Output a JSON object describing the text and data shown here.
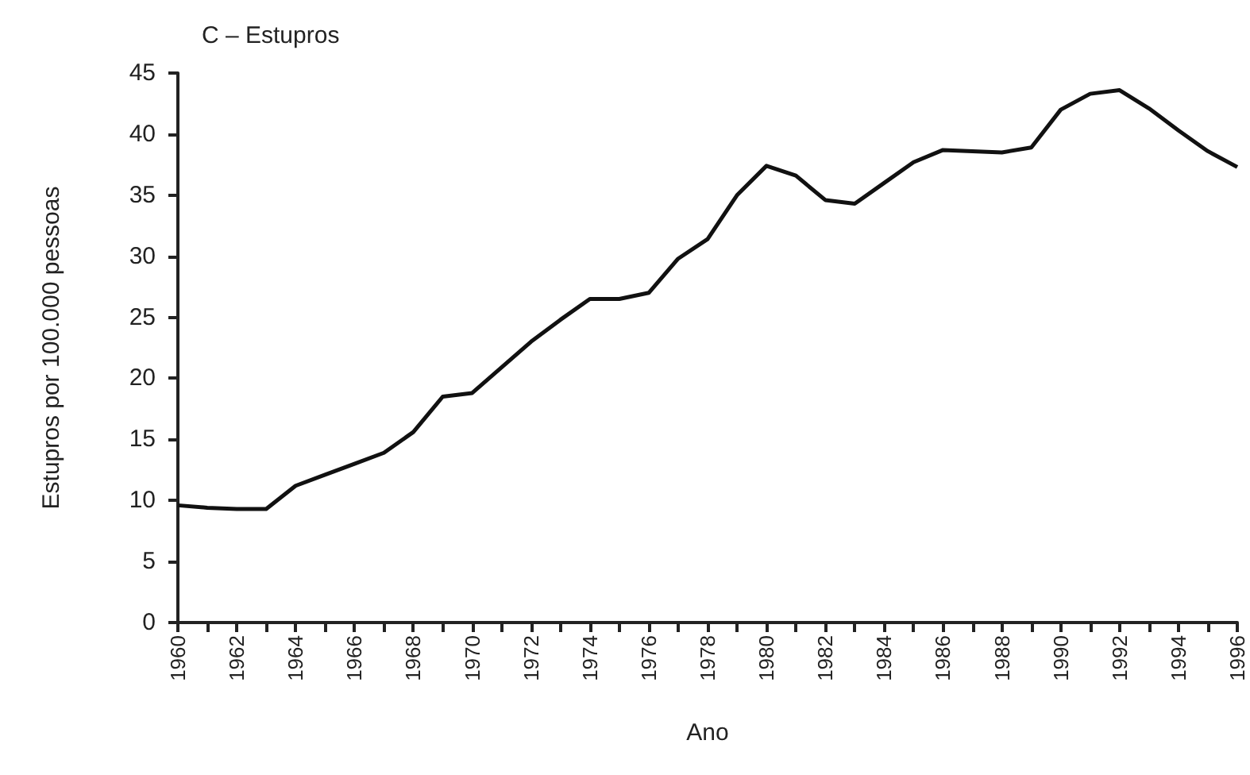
{
  "chart_data": {
    "type": "line",
    "title": "C – Estupros",
    "xlabel": "Ano",
    "ylabel": "Estupros por 100.000 pessoas",
    "x": [
      1960,
      1961,
      1962,
      1963,
      1964,
      1965,
      1966,
      1967,
      1968,
      1969,
      1970,
      1971,
      1972,
      1973,
      1974,
      1975,
      1976,
      1977,
      1978,
      1979,
      1980,
      1981,
      1982,
      1983,
      1984,
      1985,
      1986,
      1987,
      1988,
      1989,
      1990,
      1991,
      1992,
      1993,
      1994,
      1995,
      1996
    ],
    "series": [
      {
        "color": "#111111",
        "values": [
          9.6,
          9.4,
          9.3,
          9.3,
          11.2,
          12.1,
          13.0,
          13.9,
          15.6,
          18.5,
          18.8,
          20.9,
          23.0,
          24.8,
          26.5,
          26.5,
          27.0,
          29.8,
          31.4,
          35.0,
          37.4,
          36.6,
          34.6,
          34.3,
          36.0,
          37.7,
          38.7,
          38.6,
          38.5,
          38.9,
          42.0,
          43.3,
          43.6,
          42.1,
          40.3,
          38.6,
          37.3
        ]
      }
    ],
    "xlim": [
      1960,
      1996
    ],
    "xticks": [
      1960,
      {
        "value": 1961,
        "label": null
      },
      1962,
      {
        "value": 1963,
        "label": null
      },
      1964,
      {
        "value": 1965,
        "label": null
      },
      1966,
      {
        "value": 1967,
        "label": null
      },
      1968,
      {
        "value": 1969,
        "label": null
      },
      1970,
      {
        "value": 1971,
        "label": null
      },
      1972,
      {
        "value": 1973,
        "label": null
      },
      1974,
      {
        "value": 1975,
        "label": null
      },
      1976,
      {
        "value": 1977,
        "label": null
      },
      1978,
      {
        "value": 1979,
        "label": null
      },
      1980,
      {
        "value": 1981,
        "label": null
      },
      1982,
      {
        "value": 1983,
        "label": null
      },
      1984,
      {
        "value": 1985,
        "label": null
      },
      1986,
      {
        "value": 1987,
        "label": null
      },
      1988,
      {
        "value": 1989,
        "label": null
      },
      1990,
      {
        "value": 1991,
        "label": null
      },
      1992,
      {
        "value": 1993,
        "label": null
      },
      1994,
      {
        "value": 1995,
        "label": null
      },
      1996
    ],
    "ylim": [
      0,
      45
    ],
    "yticks": [
      0,
      5,
      10,
      15,
      20,
      25,
      30,
      35,
      40,
      45
    ],
    "grid": false,
    "marker": "none",
    "line_style": "solid"
  }
}
